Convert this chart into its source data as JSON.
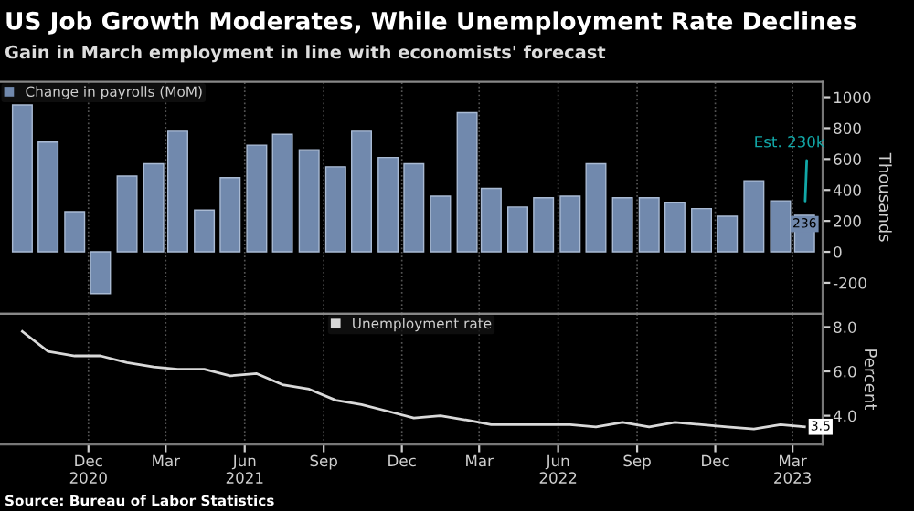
{
  "chart_data": [
    {
      "type": "bar",
      "title": "US Job Growth Moderates, While Unemployment Rate Declines",
      "subtitle": "Gain in March employment in line with economists' forecast",
      "ylabel": "Thousands",
      "x": [
        "2020-09-15",
        "2020-10-15",
        "2020-11-15",
        "2020-12-15",
        "2021-01-15",
        "2021-02-15",
        "2021-03-15",
        "2021-04-15",
        "2021-05-15",
        "2021-06-15",
        "2021-07-15",
        "2021-08-15",
        "2021-09-15",
        "2021-10-15",
        "2021-11-15",
        "2021-12-15",
        "2022-01-15",
        "2022-02-15",
        "2022-03-15",
        "2022-04-15",
        "2022-05-15",
        "2022-06-15",
        "2022-07-15",
        "2022-08-15",
        "2022-09-15",
        "2022-10-15",
        "2022-11-15",
        "2022-12-15",
        "2023-01-15",
        "2023-02-15",
        "2023-03-15"
      ],
      "series": [
        {
          "name": "Change in payrolls (MoM)",
          "color": "#7189ad",
          "values": [
            950,
            710,
            260,
            -270,
            490,
            570,
            780,
            270,
            480,
            690,
            760,
            660,
            550,
            780,
            610,
            570,
            360,
            900,
            410,
            290,
            350,
            360,
            570,
            350,
            350,
            320,
            280,
            230,
            460,
            330,
            236
          ],
          "value_labels": [
            null,
            null,
            null,
            null,
            null,
            null,
            null,
            null,
            null,
            null,
            null,
            null,
            null,
            null,
            null,
            null,
            null,
            null,
            null,
            null,
            null,
            null,
            null,
            null,
            null,
            null,
            null,
            null,
            null,
            null,
            "236"
          ]
        }
      ],
      "xlim": [
        "2020-08-20",
        "2023-04-05"
      ],
      "xticks": [
        {
          "value": "2020-12-01",
          "label": null
        },
        {
          "value": "2021-03-01",
          "label": null
        },
        {
          "value": "2021-06-01",
          "label": null
        },
        {
          "value": "2021-09-01",
          "label": null
        },
        {
          "value": "2021-12-01",
          "label": null
        },
        {
          "value": "2022-03-01",
          "label": null
        },
        {
          "value": "2022-06-01",
          "label": null
        },
        {
          "value": "2022-09-01",
          "label": null
        },
        {
          "value": "2022-12-01",
          "label": null
        },
        {
          "value": "2023-03-01",
          "label": null
        }
      ],
      "ylim": [
        -400,
        1100
      ],
      "yticks": [
        -200,
        0,
        200,
        400,
        600,
        800,
        1000
      ],
      "grid": "x",
      "legend": "top left",
      "tick_labels": "y",
      "annotations": [
        {
          "text": "Est. 230k",
          "x": "2023-03-15",
          "y": 230
        }
      ]
    },
    {
      "type": "line",
      "ylabel": "Percent",
      "x": [
        "2020-09-15",
        "2020-10-15",
        "2020-11-15",
        "2020-12-15",
        "2021-01-15",
        "2021-02-15",
        "2021-03-15",
        "2021-04-15",
        "2021-05-15",
        "2021-06-15",
        "2021-07-15",
        "2021-08-15",
        "2021-09-15",
        "2021-10-15",
        "2021-11-15",
        "2021-12-15",
        "2022-01-15",
        "2022-02-15",
        "2022-03-15",
        "2022-04-15",
        "2022-05-15",
        "2022-06-15",
        "2022-07-15",
        "2022-08-15",
        "2022-09-15",
        "2022-10-15",
        "2022-11-15",
        "2022-12-15",
        "2023-01-15",
        "2023-02-15",
        "2023-03-15"
      ],
      "series": [
        {
          "name": "Unemployment rate",
          "color": "#d9d9d9",
          "values": [
            7.8,
            6.9,
            6.7,
            6.7,
            6.4,
            6.2,
            6.1,
            6.1,
            5.8,
            5.9,
            5.4,
            5.2,
            4.7,
            4.5,
            4.2,
            3.9,
            4.0,
            3.8,
            3.6,
            3.6,
            3.6,
            3.6,
            3.5,
            3.7,
            3.5,
            3.7,
            3.6,
            3.5,
            3.4,
            3.6,
            3.5
          ],
          "value_labels": [
            null,
            null,
            null,
            null,
            null,
            null,
            null,
            null,
            null,
            null,
            null,
            null,
            null,
            null,
            null,
            null,
            null,
            null,
            null,
            null,
            null,
            null,
            null,
            null,
            null,
            null,
            null,
            null,
            null,
            null,
            "3.5"
          ]
        }
      ],
      "xlim": [
        "2020-08-20",
        "2023-04-05"
      ],
      "xticks": [
        {
          "value": "2020-12-01",
          "label": "Dec\n2020"
        },
        {
          "value": "2021-03-01",
          "label": "Mar"
        },
        {
          "value": "2021-06-01",
          "label": "Jun\n2021"
        },
        {
          "value": "2021-09-01",
          "label": "Sep"
        },
        {
          "value": "2021-12-01",
          "label": "Dec"
        },
        {
          "value": "2022-03-01",
          "label": "Mar"
        },
        {
          "value": "2022-06-01",
          "label": "Jun\n2022"
        },
        {
          "value": "2022-09-01",
          "label": "Sep"
        },
        {
          "value": "2022-12-01",
          "label": "Dec"
        },
        {
          "value": "2023-03-01",
          "label": "Mar\n2023"
        }
      ],
      "ylim": [
        2.7,
        8.6
      ],
      "yticks": [
        {
          "value": 4,
          "label": "4.0"
        },
        {
          "value": 6,
          "label": "6.0"
        },
        {
          "value": 8,
          "label": "8.0"
        }
      ],
      "grid": "x",
      "legend": "top",
      "line_style": "solid",
      "marker": "none",
      "annotations": [
        "Source: Bureau of Labor Statistics"
      ]
    }
  ]
}
